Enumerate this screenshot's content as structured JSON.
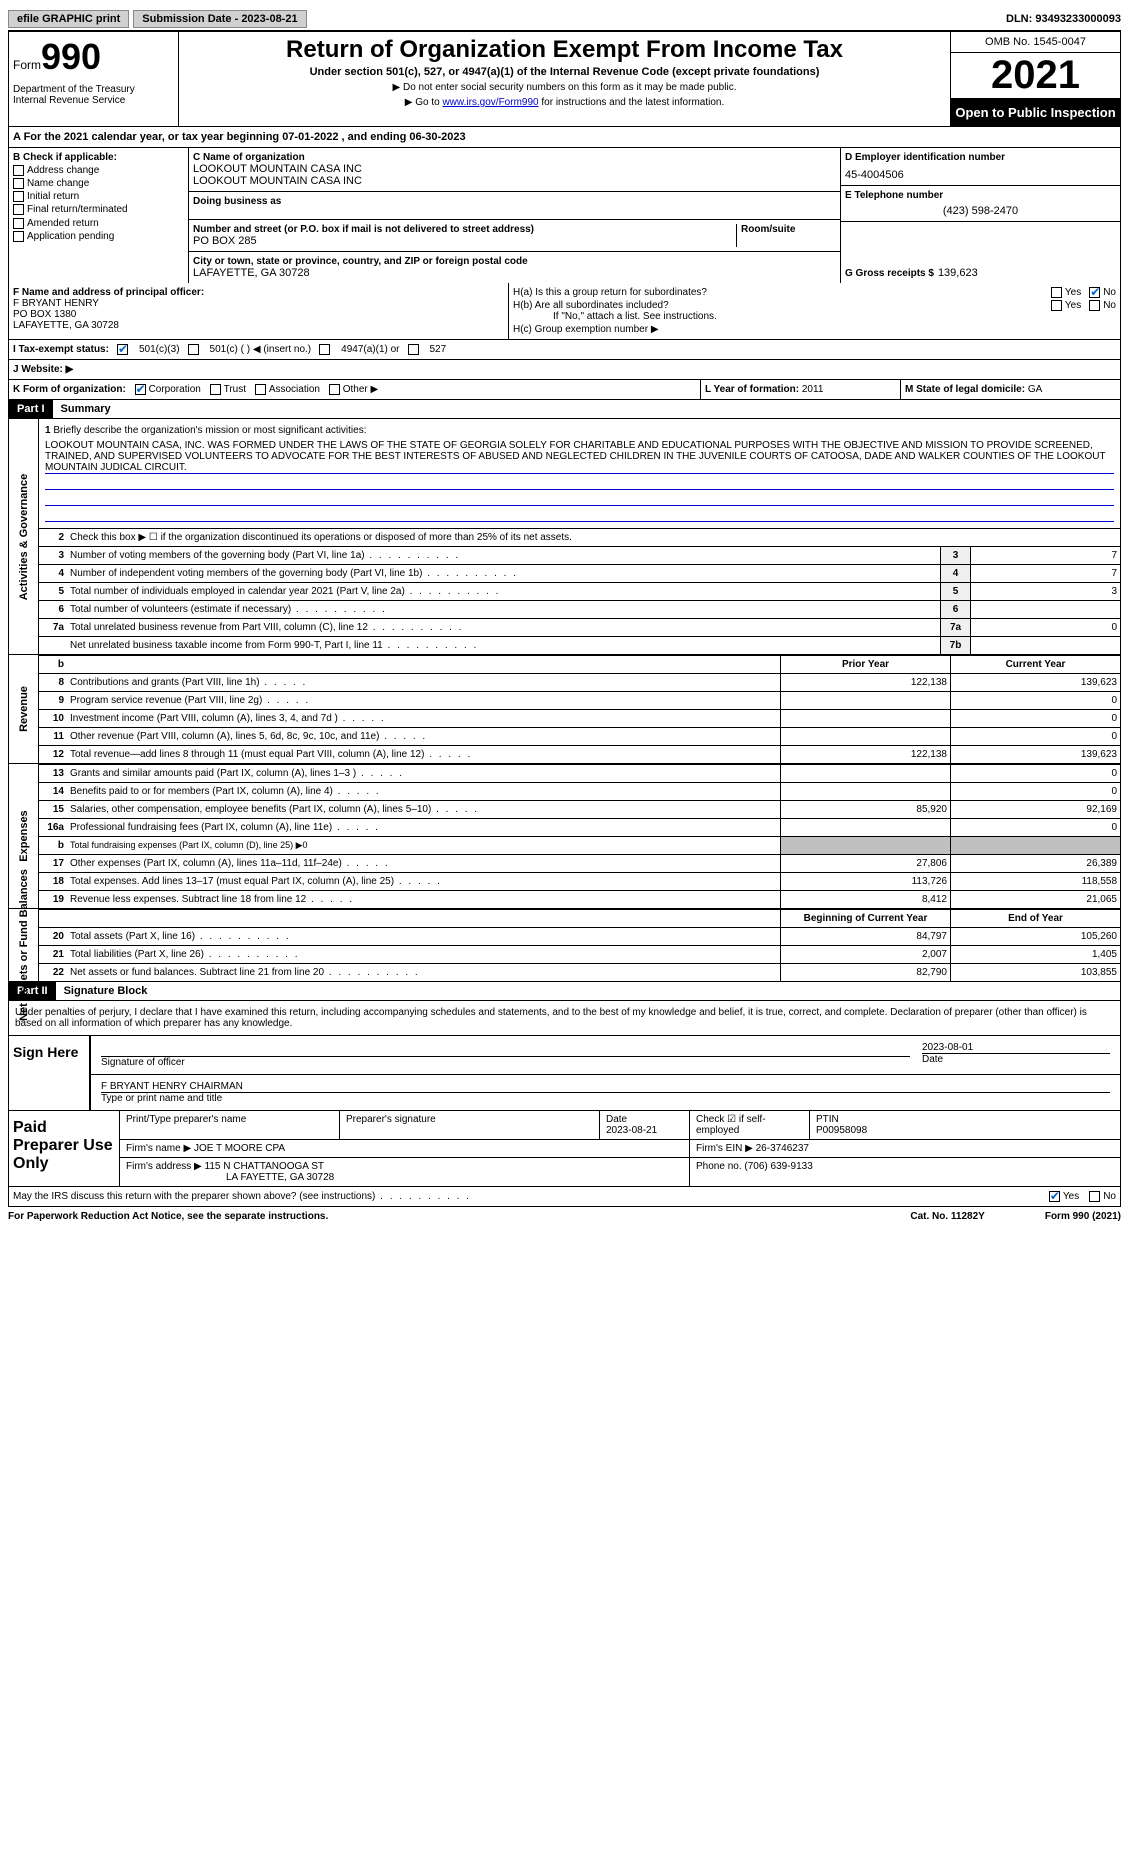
{
  "topbar": {
    "efile": "efile GRAPHIC print",
    "submission_label": "Submission Date - 2023-08-21",
    "dln_label": "DLN: 93493233000093"
  },
  "header": {
    "form_label": "Form",
    "form_num": "990",
    "dept": "Department of the Treasury\nInternal Revenue Service",
    "title": "Return of Organization Exempt From Income Tax",
    "subtitle": "Under section 501(c), 527, or 4947(a)(1) of the Internal Revenue Code (except private foundations)",
    "note1": "▶ Do not enter social security numbers on this form as it may be made public.",
    "note2_pre": "▶ Go to ",
    "note2_link": "www.irs.gov/Form990",
    "note2_post": " for instructions and the latest information.",
    "omb": "OMB No. 1545-0047",
    "year": "2021",
    "open": "Open to Public Inspection"
  },
  "rowA": "A  For the 2021 calendar year, or tax year beginning 07-01-2022     , and ending 06-30-2023",
  "B": {
    "header": "B Check if applicable:",
    "items": [
      "Address change",
      "Name change",
      "Initial return",
      "Final return/terminated",
      "Amended return",
      "Application pending"
    ]
  },
  "C": {
    "name_lbl": "C Name of organization",
    "name1": "LOOKOUT MOUNTAIN CASA INC",
    "name2": "LOOKOUT MOUNTAIN CASA INC",
    "dba_lbl": "Doing business as",
    "addr_lbl": "Number and street (or P.O. box if mail is not delivered to street address)",
    "room_lbl": "Room/suite",
    "addr": "PO BOX 285",
    "city_lbl": "City or town, state or province, country, and ZIP or foreign postal code",
    "city": "LAFAYETTE, GA  30728"
  },
  "D": {
    "lbl": "D Employer identification number",
    "val": "45-4004506"
  },
  "E": {
    "lbl": "E Telephone number",
    "val": "(423) 598-2470"
  },
  "G": {
    "lbl": "G Gross receipts $",
    "val": "139,623"
  },
  "F": {
    "lbl": "F  Name and address of principal officer:",
    "name": "F BRYANT HENRY",
    "addr1": "PO BOX 1380",
    "addr2": "LAFAYETTE, GA  30728"
  },
  "H": {
    "a": "H(a)  Is this a group return for subordinates?",
    "b": "H(b)  Are all subordinates included?",
    "b_note": "If \"No,\" attach a list. See instructions.",
    "c": "H(c)  Group exemption number ▶",
    "yes": "Yes",
    "no": "No"
  },
  "I": {
    "lbl": "I    Tax-exempt status:",
    "opts": [
      "501(c)(3)",
      "501(c) (  ) ◀ (insert no.)",
      "4947(a)(1) or",
      "527"
    ]
  },
  "J": {
    "lbl": "J   Website: ▶"
  },
  "K": {
    "lbl": "K Form of organization:",
    "opts": [
      "Corporation",
      "Trust",
      "Association",
      "Other ▶"
    ]
  },
  "L": {
    "lbl": "L Year of formation:",
    "val": "2011"
  },
  "M": {
    "lbl": "M State of legal domicile:",
    "val": "GA"
  },
  "partI": {
    "hdr": "Part I",
    "title": "Summary"
  },
  "mission": {
    "num": "1",
    "lbl": "Briefly describe the organization's mission or most significant activities:",
    "text": "LOOKOUT MOUNTAIN CASA, INC. WAS FORMED UNDER THE LAWS OF THE STATE OF GEORGIA SOLELY FOR CHARITABLE AND EDUCATIONAL PURPOSES WITH THE OBJECTIVE AND MISSION TO PROVIDE SCREENED, TRAINED, AND SUPERVISED VOLUNTEERS TO ADVOCATE FOR THE BEST INTERESTS OF ABUSED AND NEGLECTED CHILDREN IN THE JUVENILE COURTS OF CATOOSA, DADE AND WALKER COUNTIES OF THE LOOKOUT MOUNTAIN JUDICAL CIRCUIT."
  },
  "gov_lines": [
    {
      "n": "2",
      "d": "Check this box ▶ ☐  if the organization discontinued its operations or disposed of more than 25% of its net assets."
    },
    {
      "n": "3",
      "d": "Number of voting members of the governing body (Part VI, line 1a)",
      "box": "3",
      "v": "7"
    },
    {
      "n": "4",
      "d": "Number of independent voting members of the governing body (Part VI, line 1b)",
      "box": "4",
      "v": "7"
    },
    {
      "n": "5",
      "d": "Total number of individuals employed in calendar year 2021 (Part V, line 2a)",
      "box": "5",
      "v": "3"
    },
    {
      "n": "6",
      "d": "Total number of volunteers (estimate if necessary)",
      "box": "6",
      "v": ""
    },
    {
      "n": "7a",
      "d": "Total unrelated business revenue from Part VIII, column (C), line 12",
      "box": "7a",
      "v": "0"
    },
    {
      "n": "",
      "d": "Net unrelated business taxable income from Form 990-T, Part I, line 11",
      "box": "7b",
      "v": ""
    }
  ],
  "col_hdrs": {
    "b": "b",
    "prior": "Prior Year",
    "current": "Current Year"
  },
  "revenue": [
    {
      "n": "8",
      "d": "Contributions and grants (Part VIII, line 1h)",
      "p": "122,138",
      "c": "139,623"
    },
    {
      "n": "9",
      "d": "Program service revenue (Part VIII, line 2g)",
      "p": "",
      "c": "0"
    },
    {
      "n": "10",
      "d": "Investment income (Part VIII, column (A), lines 3, 4, and 7d )",
      "p": "",
      "c": "0"
    },
    {
      "n": "11",
      "d": "Other revenue (Part VIII, column (A), lines 5, 6d, 8c, 9c, 10c, and 11e)",
      "p": "",
      "c": "0"
    },
    {
      "n": "12",
      "d": "Total revenue—add lines 8 through 11 (must equal Part VIII, column (A), line 12)",
      "p": "122,138",
      "c": "139,623"
    }
  ],
  "expenses": [
    {
      "n": "13",
      "d": "Grants and similar amounts paid (Part IX, column (A), lines 1–3 )",
      "p": "",
      "c": "0"
    },
    {
      "n": "14",
      "d": "Benefits paid to or for members (Part IX, column (A), line 4)",
      "p": "",
      "c": "0"
    },
    {
      "n": "15",
      "d": "Salaries, other compensation, employee benefits (Part IX, column (A), lines 5–10)",
      "p": "85,920",
      "c": "92,169"
    },
    {
      "n": "16a",
      "d": "Professional fundraising fees (Part IX, column (A), line 11e)",
      "p": "",
      "c": "0"
    },
    {
      "n": "b",
      "d": "Total fundraising expenses (Part IX, column (D), line 25) ▶0",
      "grey": true
    },
    {
      "n": "17",
      "d": "Other expenses (Part IX, column (A), lines 11a–11d, 11f–24e)",
      "p": "27,806",
      "c": "26,389"
    },
    {
      "n": "18",
      "d": "Total expenses. Add lines 13–17 (must equal Part IX, column (A), line 25)",
      "p": "113,726",
      "c": "118,558"
    },
    {
      "n": "19",
      "d": "Revenue less expenses. Subtract line 18 from line 12",
      "p": "8,412",
      "c": "21,065"
    }
  ],
  "net_hdrs": {
    "begin": "Beginning of Current Year",
    "end": "End of Year"
  },
  "net": [
    {
      "n": "20",
      "d": "Total assets (Part X, line 16)",
      "p": "84,797",
      "c": "105,260"
    },
    {
      "n": "21",
      "d": "Total liabilities (Part X, line 26)",
      "p": "2,007",
      "c": "1,405"
    },
    {
      "n": "22",
      "d": "Net assets or fund balances. Subtract line 21 from line 20",
      "p": "82,790",
      "c": "103,855"
    }
  ],
  "side_labels": {
    "gov": "Activities & Governance",
    "rev": "Revenue",
    "exp": "Expenses",
    "net": "Net Assets or Fund Balances"
  },
  "partII": {
    "hdr": "Part II",
    "title": "Signature Block"
  },
  "sig": {
    "perjury": "Under penalties of perjury, I declare that I have examined this return, including accompanying schedules and statements, and to the best of my knowledge and belief, it is true, correct, and complete. Declaration of preparer (other than officer) is based on all information of which preparer has any knowledge.",
    "sign_here": "Sign Here",
    "sig_officer": "Signature of officer",
    "date": "Date",
    "date_val": "2023-08-01",
    "name_title": "F BRYANT HENRY  CHAIRMAN",
    "type_name": "Type or print name and title"
  },
  "prep": {
    "title": "Paid Preparer Use Only",
    "print_lbl": "Print/Type preparer's name",
    "sig_lbl": "Preparer's signature",
    "date_lbl": "Date",
    "date_val": "2023-08-21",
    "check_lbl": "Check ☑ if self-employed",
    "ptin_lbl": "PTIN",
    "ptin": "P00958098",
    "firm_name_lbl": "Firm's name    ▶",
    "firm_name": "JOE T MOORE CPA",
    "firm_ein_lbl": "Firm's EIN ▶",
    "firm_ein": "26-3746237",
    "firm_addr_lbl": "Firm's address ▶",
    "firm_addr1": "115 N CHATTANOOGA ST",
    "firm_addr2": "LA FAYETTE, GA  30728",
    "phone_lbl": "Phone no.",
    "phone": "(706) 639-9133"
  },
  "discuss": {
    "q": "May the IRS discuss this return with the preparer shown above? (see instructions)",
    "yes": "Yes",
    "no": "No"
  },
  "footer": {
    "pra": "For Paperwork Reduction Act Notice, see the separate instructions.",
    "cat": "Cat. No. 11282Y",
    "form": "Form 990 (2021)"
  }
}
